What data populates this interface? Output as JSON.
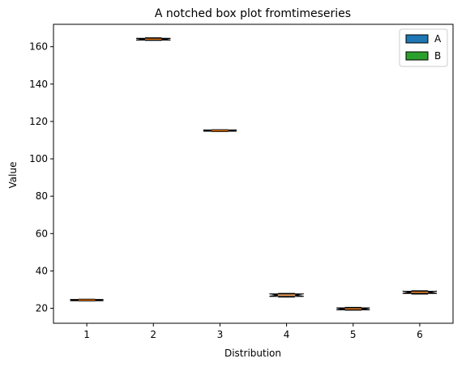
{
  "chart_data": {
    "type": "box",
    "title": "A notched box plot fromtimeseries",
    "xlabel": "Distribution",
    "ylabel": "Value",
    "categories": [
      "1",
      "2",
      "3",
      "4",
      "5",
      "6"
    ],
    "ylim": [
      12,
      172
    ],
    "yticks": [
      20,
      40,
      60,
      80,
      100,
      120,
      140,
      160
    ],
    "notched": true,
    "legend": {
      "placement": "upper right",
      "entries": [
        {
          "name": "A",
          "color": "#1f77b4"
        },
        {
          "name": "B",
          "color": "#2ca02c"
        }
      ]
    },
    "boxes": [
      {
        "label": "1",
        "whisker_low": 24.0,
        "q1": 24.1,
        "median": 24.4,
        "q3": 24.7,
        "whisker_high": 24.9
      },
      {
        "label": "2",
        "whisker_low": 163.4,
        "q1": 163.6,
        "median": 164.0,
        "q3": 164.5,
        "whisker_high": 164.8
      },
      {
        "label": "3",
        "whisker_low": 114.6,
        "q1": 114.8,
        "median": 115.1,
        "q3": 115.4,
        "whisker_high": 115.6
      },
      {
        "label": "4",
        "whisker_low": 26.0,
        "q1": 26.4,
        "median": 27.1,
        "q3": 27.7,
        "whisker_high": 28.0
      },
      {
        "label": "5",
        "whisker_low": 19.0,
        "q1": 19.2,
        "median": 19.7,
        "q3": 20.2,
        "whisker_high": 20.5
      },
      {
        "label": "6",
        "whisker_low": 27.6,
        "q1": 28.0,
        "median": 28.6,
        "q3": 29.1,
        "whisker_high": 29.4
      }
    ],
    "colors": {
      "box_edge": "#000000",
      "median": "#ff7f0e",
      "axes": "#000000",
      "background": "#ffffff"
    }
  }
}
